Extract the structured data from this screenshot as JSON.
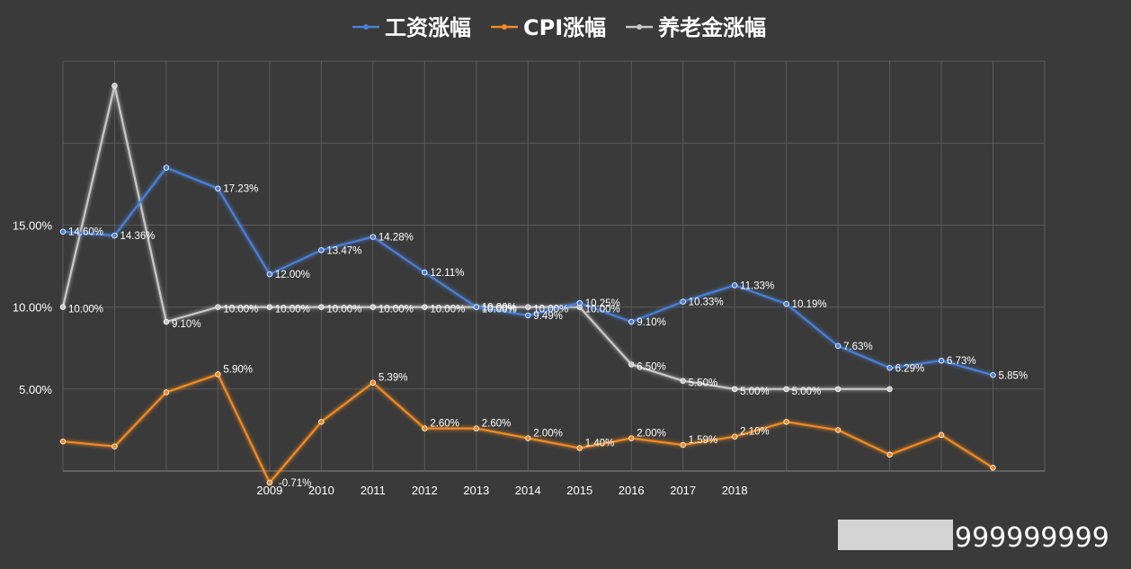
{
  "chart_data": {
    "type": "line",
    "x": [
      "",
      "",
      "",
      "",
      "2009",
      "2010",
      "2011",
      "2012",
      "2013",
      "2014",
      "2015",
      "2016",
      "2017",
      "2018",
      "",
      "",
      "",
      "",
      "",
      ""
    ],
    "ylim": [
      0,
      25
    ],
    "yticks": [
      5,
      10,
      15
    ],
    "ytick_labels": [
      "5.00%",
      "10.00%",
      "15.00%"
    ],
    "grid": true,
    "legend_position": "top-center",
    "series": [
      {
        "name": "工资涨幅",
        "color": "#4a7fd6",
        "values": [
          14.6,
          14.36,
          18.5,
          17.23,
          12.0,
          13.47,
          14.28,
          12.11,
          10.0,
          9.49,
          10.25,
          9.1,
          10.33,
          11.33,
          10.19,
          7.63,
          6.29,
          6.73,
          5.85,
          null
        ],
        "labels": [
          "14.60%",
          "14.36%",
          "",
          "17.23%",
          "12.00%",
          "13.47%",
          "14.28%",
          "12.11%",
          "10.00%",
          "9.49%",
          "10.25%",
          "9.10%",
          "10.33%",
          "11.33%",
          "10.19%",
          "7.63%",
          "6.29%",
          "6.73%",
          "5.85%",
          ""
        ]
      },
      {
        "name": "CPI涨幅",
        "color": "#f08a24",
        "values": [
          1.8,
          1.5,
          4.8,
          5.9,
          -0.71,
          3.0,
          5.39,
          2.6,
          2.6,
          2.0,
          1.4,
          2.0,
          1.59,
          2.1,
          3.0,
          2.5,
          1.0,
          2.2,
          0.2,
          null
        ],
        "labels": [
          "",
          "",
          "",
          "5.90%",
          "-0.71%",
          "",
          "5.39%",
          "2.60%",
          "2.60%",
          "2.00%",
          "1.40%",
          "2.00%",
          "1.59%",
          "2.10%",
          "",
          "",
          "",
          "",
          "",
          ""
        ]
      },
      {
        "name": "养老金涨幅",
        "color": "#c8c8c8",
        "values": [
          10.0,
          23.5,
          9.1,
          10.0,
          10.0,
          10.0,
          10.0,
          10.0,
          10.0,
          10.0,
          10.0,
          6.5,
          5.5,
          5.0,
          5.0,
          5.0,
          5.0,
          null,
          null,
          null
        ],
        "labels": [
          "10.00%",
          "",
          "9.10%",
          "10.00%",
          "10.00%",
          "10.00%",
          "10.00%",
          "10.00%",
          "10.00%",
          "10.00%",
          "10.00%",
          "6.50%",
          "5.50%",
          "5.00%",
          "5.00%",
          "",
          "",
          "",
          "",
          ""
        ]
      }
    ]
  },
  "watermark": {
    "text": "999999999"
  }
}
